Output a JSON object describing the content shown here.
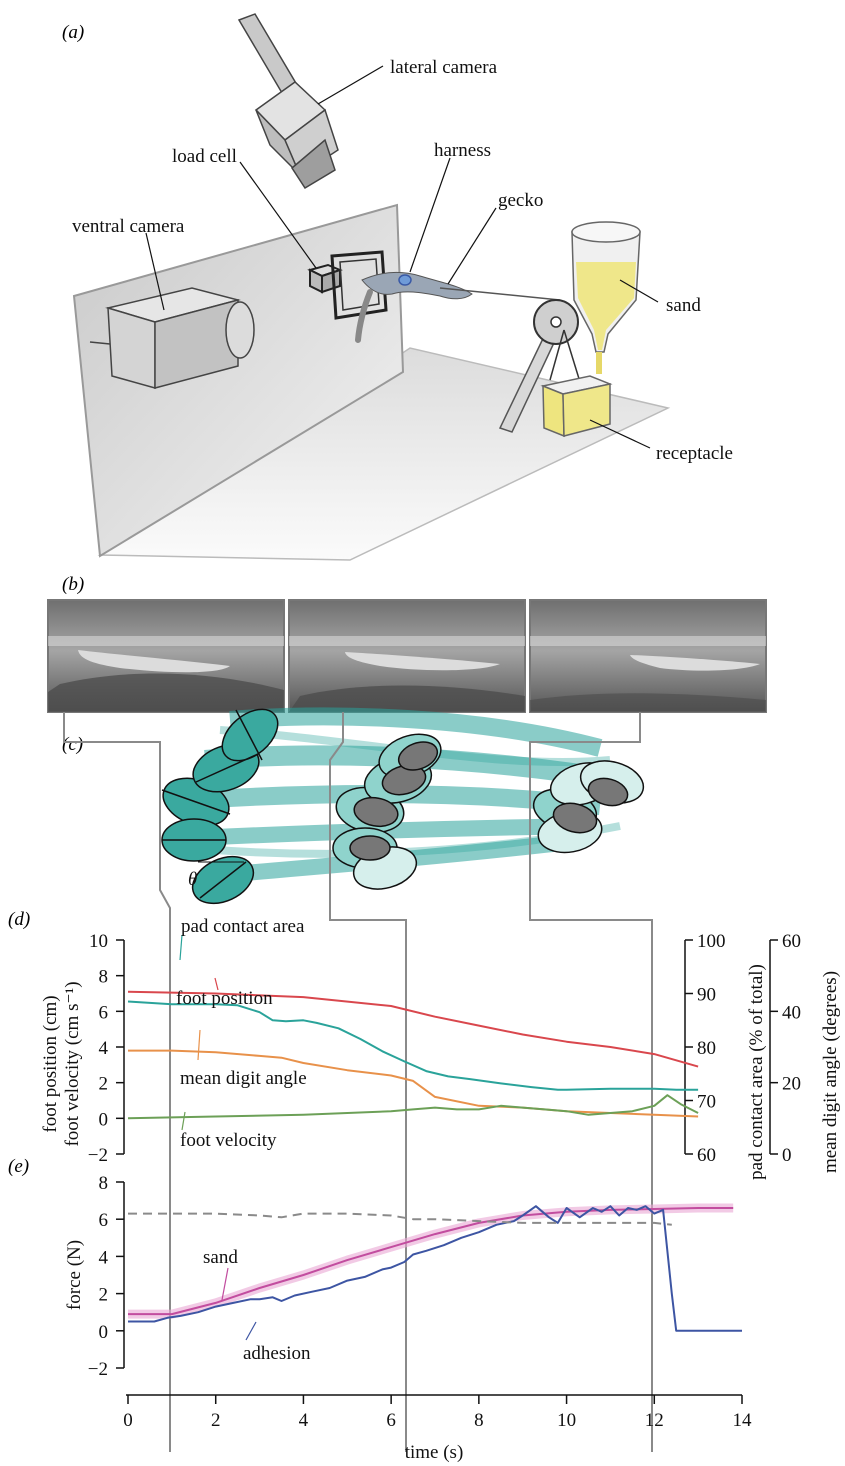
{
  "panels": {
    "a": "(a)",
    "b": "(b)",
    "c": "(c)",
    "d": "(d)",
    "e": "(e)"
  },
  "apparatus": {
    "lateral_camera": "lateral camera",
    "load_cell": "load cell",
    "harness": "harness",
    "gecko": "gecko",
    "ventral_camera": "ventral camera",
    "sand": "sand",
    "receptacle": "receptacle"
  },
  "angle_symbol": "θ",
  "colors": {
    "teal": "#2aa39a",
    "red": "#d9474d",
    "orange": "#e8914a",
    "green": "#6ca057",
    "blue": "#3d55a3",
    "pink": "#c24d9f",
    "sand": "#efe78a",
    "grey": "#8a8a8a"
  },
  "chart_data": [
    {
      "id": "d",
      "type": "line",
      "x_ticks": [
        0,
        2,
        4,
        6,
        8,
        10,
        12,
        14
      ],
      "xlim": [
        0,
        14
      ],
      "left_axis": {
        "labels": [
          "foot position (cm)",
          "foot velocity (cm s⁻¹)"
        ],
        "ylim": [
          -2,
          10
        ],
        "ticks": [
          -2,
          0,
          2,
          4,
          6,
          8,
          10
        ]
      },
      "right_axis_1": {
        "label": "pad contact area (% of total)",
        "ylim": [
          60,
          100
        ],
        "ticks": [
          60,
          70,
          80,
          90,
          100
        ]
      },
      "right_axis_2": {
        "label": "mean digit angle (degrees)",
        "ylim": [
          0,
          60
        ],
        "ticks": [
          0,
          20,
          40,
          60
        ]
      },
      "series": [
        {
          "name": "pad contact area",
          "axis": "right_axis_1",
          "color": "teal",
          "x": [
            0,
            1,
            2,
            2.5,
            3,
            3.3,
            3.6,
            4.0,
            4.3,
            4.8,
            5.3,
            5.8,
            6.3,
            6.8,
            7.3,
            7.8,
            8.5,
            9.2,
            9.8,
            10.0,
            10.5,
            11.0,
            11.5,
            12.0,
            12.5,
            13.0
          ],
          "y": [
            88.5,
            88.0,
            88.0,
            87.8,
            86.5,
            85.0,
            84.8,
            85.0,
            84.5,
            83.5,
            81.5,
            79.2,
            77.3,
            75.5,
            74.5,
            74.0,
            73.2,
            72.5,
            72.0,
            72.0,
            72.1,
            72.2,
            72.2,
            72.2,
            72.0,
            72.0
          ]
        },
        {
          "name": "foot position",
          "axis": "left",
          "color": "red",
          "x": [
            0,
            2,
            4,
            6,
            7,
            8,
            9,
            10,
            11,
            12,
            13
          ],
          "y": [
            7.1,
            7.0,
            6.8,
            6.3,
            5.7,
            5.2,
            4.7,
            4.3,
            4.0,
            3.6,
            2.9
          ]
        },
        {
          "name": "mean digit angle",
          "axis": "right_axis_2",
          "color": "orange",
          "x": [
            0,
            1,
            2,
            3,
            3.5,
            4,
            5,
            6,
            6.5,
            7,
            8,
            9,
            10,
            11,
            12,
            13
          ],
          "y": [
            29.0,
            29.0,
            28.5,
            27.5,
            27.0,
            25.5,
            23.5,
            22.0,
            20.5,
            16.0,
            13.5,
            13.0,
            12.0,
            11.5,
            11.0,
            10.5
          ]
        },
        {
          "name": "foot velocity",
          "axis": "left",
          "color": "green",
          "x": [
            0,
            2,
            4,
            6,
            6.5,
            7,
            7.5,
            8,
            8.5,
            9,
            9.5,
            10,
            10.5,
            11,
            11.5,
            12,
            12.3,
            12.6,
            13
          ],
          "y": [
            0.0,
            0.1,
            0.2,
            0.4,
            0.5,
            0.6,
            0.5,
            0.5,
            0.7,
            0.6,
            0.5,
            0.4,
            0.2,
            0.3,
            0.4,
            0.7,
            1.3,
            0.8,
            0.3
          ]
        }
      ]
    },
    {
      "id": "e",
      "type": "line",
      "x_ticks": [
        0,
        2,
        4,
        6,
        8,
        10,
        12,
        14
      ],
      "xlim": [
        0,
        14
      ],
      "xlabel": "time (s)",
      "ylabel": "force (N)",
      "ylim": [
        -2,
        8
      ],
      "y_ticks": [
        -2,
        0,
        2,
        4,
        6,
        8
      ],
      "series": [
        {
          "name": "sand",
          "color": "pink",
          "x": [
            0,
            1.0,
            2,
            3,
            4,
            5,
            6,
            7,
            8,
            9,
            10,
            11,
            12,
            13,
            13.8
          ],
          "y": [
            0.9,
            0.9,
            1.5,
            2.3,
            3.0,
            3.8,
            4.5,
            5.2,
            5.8,
            6.2,
            6.4,
            6.5,
            6.55,
            6.6,
            6.6
          ]
        },
        {
          "name": "adhesion",
          "color": "blue",
          "x": [
            0,
            0.6,
            0.9,
            1.2,
            1.6,
            2.0,
            2.4,
            2.8,
            3.0,
            3.3,
            3.5,
            3.8,
            4.2,
            4.6,
            5.0,
            5.4,
            5.8,
            6.0,
            6.3,
            6.5,
            6.8,
            7.2,
            7.6,
            8.0,
            8.4,
            8.8,
            9.0,
            9.3,
            9.6,
            9.8,
            10.0,
            10.3,
            10.6,
            10.8,
            11.0,
            11.2,
            11.4,
            11.6,
            11.8,
            12.0,
            12.2,
            12.4,
            12.5,
            13,
            14
          ],
          "y": [
            0.5,
            0.5,
            0.7,
            0.8,
            1.0,
            1.3,
            1.5,
            1.7,
            1.7,
            1.8,
            1.6,
            1.9,
            2.1,
            2.3,
            2.7,
            2.9,
            3.3,
            3.4,
            3.7,
            4.1,
            4.3,
            4.6,
            5.0,
            5.3,
            5.7,
            5.9,
            6.2,
            6.7,
            6.1,
            5.8,
            6.6,
            6.1,
            6.6,
            6.4,
            6.7,
            6.2,
            6.6,
            6.5,
            6.7,
            6.3,
            6.5,
            2.0,
            0.0,
            0.0,
            0.0
          ]
        },
        {
          "name": "",
          "style": "dashed",
          "color": "grey",
          "x": [
            0,
            1,
            2,
            3,
            3.5,
            4,
            5,
            6,
            6.5,
            7,
            8,
            9,
            10,
            11,
            12,
            12.4
          ],
          "y": [
            6.3,
            6.3,
            6.3,
            6.2,
            6.1,
            6.3,
            6.3,
            6.2,
            6.0,
            6.0,
            5.9,
            5.8,
            5.8,
            5.8,
            5.8,
            5.7
          ]
        }
      ],
      "vertical_markers_x": [
        0.95,
        6.4,
        11.9
      ]
    }
  ]
}
